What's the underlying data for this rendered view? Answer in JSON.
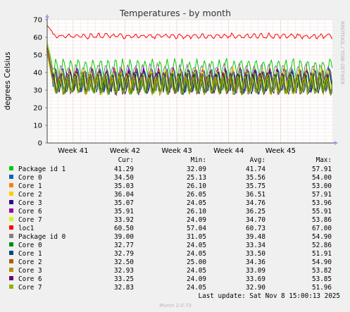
{
  "chart_data": {
    "type": "line",
    "title": "Temperatures - by month",
    "ylabel": "degrees Celsius",
    "side_text": "RRDTOOL / TOBI OETIKER",
    "ylim": [
      0,
      70
    ],
    "yticks": [
      0,
      10,
      20,
      30,
      40,
      50,
      60,
      70
    ],
    "grid": true,
    "x_range_weeks": [
      40.5,
      46.0
    ],
    "xticks": [
      {
        "label": "Week 41",
        "week": 41
      },
      {
        "label": "Week 42",
        "week": 42
      },
      {
        "label": "Week 43",
        "week": 43
      },
      {
        "label": "Week 44",
        "week": 44
      },
      {
        "label": "Week 45",
        "week": 45
      }
    ],
    "legend_headers": [
      "Cur:",
      "Min:",
      "Avg:",
      "Max:"
    ],
    "series": [
      {
        "name": "Package id 1",
        "color": "#00cc00",
        "cur": "41.29",
        "min": "32.09",
        "avg": "41.74",
        "max": "57.91"
      },
      {
        "name": "Core 0",
        "color": "#0066b3",
        "cur": "34.50",
        "min": "25.13",
        "avg": "35.56",
        "max": "54.00"
      },
      {
        "name": "Core 1",
        "color": "#ff8000",
        "cur": "35.03",
        "min": "26.10",
        "avg": "35.75",
        "max": "53.00"
      },
      {
        "name": "Core 2",
        "color": "#ffcc00",
        "cur": "36.04",
        "min": "26.05",
        "avg": "36.51",
        "max": "57.91"
      },
      {
        "name": "Core 3",
        "color": "#330099",
        "cur": "35.07",
        "min": "24.05",
        "avg": "34.76",
        "max": "53.96"
      },
      {
        "name": "Core 6",
        "color": "#990099",
        "cur": "35.91",
        "min": "26.10",
        "avg": "36.25",
        "max": "55.91"
      },
      {
        "name": "Core 7",
        "color": "#ccff00",
        "cur": "33.92",
        "min": "24.09",
        "avg": "34.70",
        "max": "53.86"
      },
      {
        "name": "loc1",
        "color": "#ff0000",
        "cur": "60.50",
        "min": "57.04",
        "avg": "60.73",
        "max": "67.00"
      },
      {
        "name": "Package id 0",
        "color": "#808080",
        "cur": "39.00",
        "min": "31.05",
        "avg": "39.48",
        "max": "54.90"
      },
      {
        "name": "Core 0",
        "color": "#008f00",
        "cur": "32.77",
        "min": "24.05",
        "avg": "33.34",
        "max": "52.86"
      },
      {
        "name": "Core 1",
        "color": "#00487d",
        "cur": "32.79",
        "min": "24.05",
        "avg": "33.50",
        "max": "51.91"
      },
      {
        "name": "Core 2",
        "color": "#b35a00",
        "cur": "32.50",
        "min": "25.00",
        "avg": "34.36",
        "max": "54.90"
      },
      {
        "name": "Core 3",
        "color": "#b38f00",
        "cur": "32.93",
        "min": "24.05",
        "avg": "33.09",
        "max": "53.82"
      },
      {
        "name": "Core 6",
        "color": "#6b006b",
        "cur": "33.25",
        "min": "24.09",
        "avg": "33.69",
        "max": "53.85"
      },
      {
        "name": "Core 7",
        "color": "#8fb300",
        "cur": "32.83",
        "min": "24.05",
        "avg": "32.90",
        "max": "51.96"
      }
    ],
    "last_update": "Last update: Sat Nov  8 15:00:13 2025",
    "footer": "Munin 2.0.73"
  }
}
